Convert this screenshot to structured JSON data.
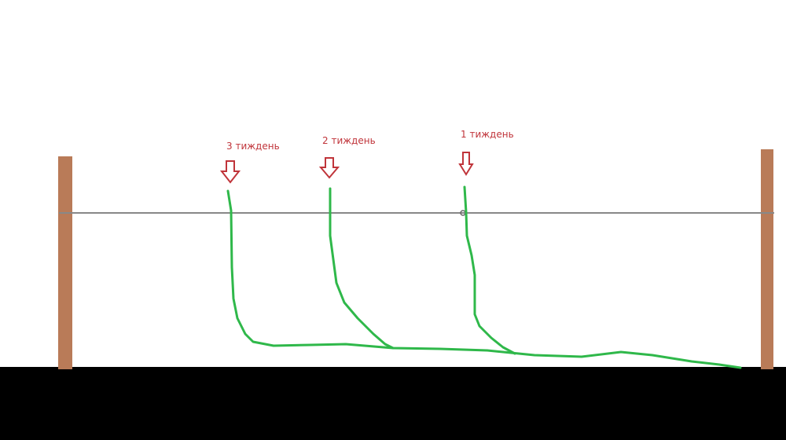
{
  "nodes": [
    {
      "label": "3 тиждень"
    },
    {
      "label": "2 тиждень"
    },
    {
      "label": "1 тиждень"
    }
  ]
}
